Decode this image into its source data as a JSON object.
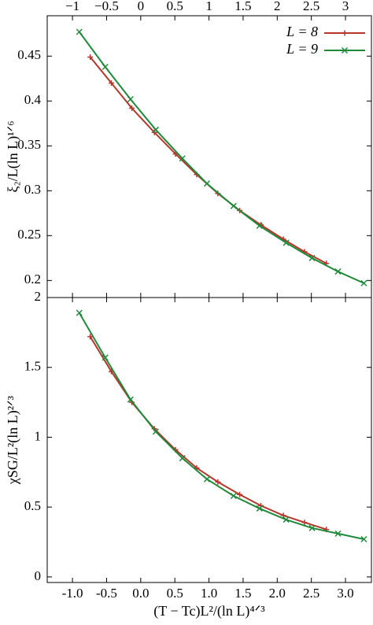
{
  "chart_data": [
    {
      "type": "line",
      "ylabel": "ξ₂/L(ln L)¹ᐟ⁶",
      "xlim": [
        -1.37,
        3.38
      ],
      "xticks": [
        {
          "value": -1,
          "label": "−1"
        },
        {
          "value": -0.5,
          "label": "−0.5"
        },
        0,
        0.5,
        1,
        1.5,
        2,
        2.5,
        3
      ],
      "ylim": [
        0.181,
        0.495
      ],
      "yticks": [
        0.2,
        0.25,
        0.3,
        0.35,
        0.4,
        0.45
      ],
      "legend": "top-right",
      "series": [
        {
          "name": "L = 8",
          "color": "#b5372b",
          "marker": "plus",
          "x": [
            -0.74,
            -0.43,
            -0.13,
            0.2,
            0.51,
            0.82,
            1.13,
            1.45,
            1.76,
            2.09,
            2.4,
            2.72
          ],
          "values": [
            0.449,
            0.42,
            0.392,
            0.365,
            0.341,
            0.318,
            0.297,
            0.278,
            0.262,
            0.246,
            0.232,
            0.219
          ]
        },
        {
          "name": "L = 9",
          "color": "#1f8a3a",
          "marker": "cross",
          "x": [
            -0.9,
            -0.52,
            -0.15,
            0.22,
            0.61,
            0.97,
            1.36,
            1.74,
            2.13,
            2.51,
            2.89,
            3.27
          ],
          "values": [
            0.477,
            0.438,
            0.402,
            0.368,
            0.336,
            0.308,
            0.283,
            0.261,
            0.242,
            0.225,
            0.21,
            0.197
          ]
        }
      ]
    },
    {
      "type": "line",
      "ylabel": "χSG/L²(ln L)²ᐟ³",
      "xlabel": "(T − Tc)L²/(ln L)⁴ᐟ³",
      "xlim": [
        -1.37,
        3.38
      ],
      "xticks": [
        {
          "value": -1,
          "label": "-1.0"
        },
        -0.5,
        {
          "value": 0,
          "label": "0.0"
        },
        0.5,
        {
          "value": 1,
          "label": "1.0"
        },
        1.5,
        {
          "value": 2,
          "label": "2.0"
        },
        2.5,
        {
          "value": 3,
          "label": "3.0"
        }
      ],
      "ylim": [
        -0.04,
        2.0
      ],
      "yticks": [
        0,
        0.5,
        1,
        1.5,
        2
      ],
      "series": [
        {
          "color": "#b5372b",
          "marker": "plus",
          "x": [
            -0.74,
            -0.43,
            -0.13,
            0.2,
            0.51,
            0.82,
            1.13,
            1.45,
            1.76,
            2.09,
            2.4,
            2.72
          ],
          "values": [
            1.72,
            1.47,
            1.25,
            1.06,
            0.91,
            0.78,
            0.68,
            0.59,
            0.51,
            0.44,
            0.39,
            0.34
          ]
        },
        {
          "color": "#1f8a3a",
          "marker": "cross",
          "x": [
            -0.9,
            -0.52,
            -0.15,
            0.22,
            0.61,
            0.97,
            1.36,
            1.74,
            2.13,
            2.51,
            2.89,
            3.27
          ],
          "values": [
            1.89,
            1.57,
            1.27,
            1.04,
            0.85,
            0.7,
            0.58,
            0.49,
            0.41,
            0.35,
            0.31,
            0.27
          ]
        }
      ]
    }
  ]
}
